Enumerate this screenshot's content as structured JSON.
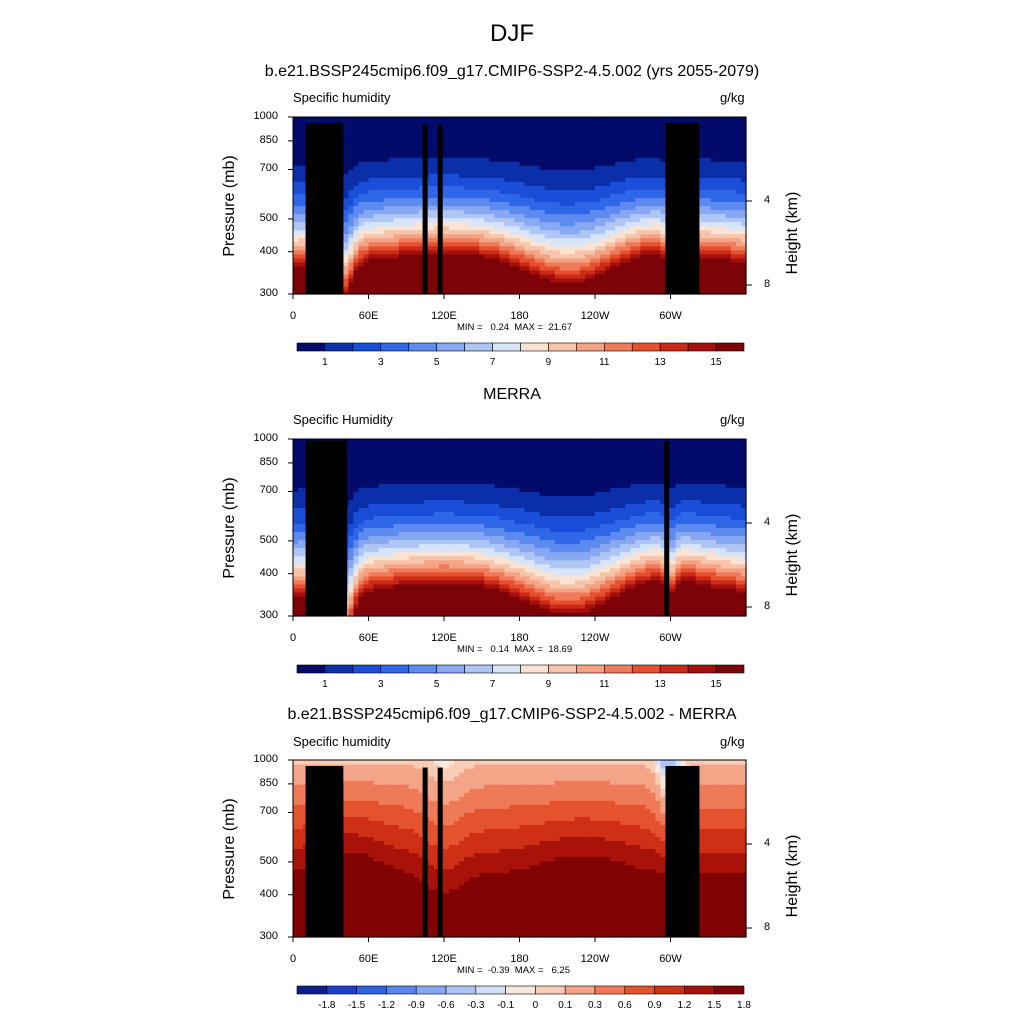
{
  "page": {
    "title": "DJF"
  },
  "palettes": {
    "abs": [
      "#030b6a",
      "#0a2fa8",
      "#1a4ed8",
      "#2f67e8",
      "#5d8bef",
      "#88a9f2",
      "#b0c6f5",
      "#d8e4f8",
      "#fbe3d4",
      "#f7c4aa",
      "#f4a384",
      "#ef7b5a",
      "#e6502f",
      "#cb2a16",
      "#a50f0d",
      "#7c0308"
    ],
    "diff": [
      "#0b1f8f",
      "#1c3fd0",
      "#2f63e6",
      "#5a86ee",
      "#86a8f2",
      "#adc3f5",
      "#d3e0f9",
      "#f9e8dc",
      "#f8cdb6",
      "#f4a487",
      "#ef7a58",
      "#e5522f",
      "#cf2f15",
      "#a81208",
      "#820303"
    ]
  },
  "panels": [
    {
      "title": "b.e21.BSSP245cmip6.f09_g17.CMIP6-SSP2-4.5.002 (yrs 2055-2079)",
      "left_label": "Specific humidity",
      "units": "g/kg",
      "stats": "MIN =   0.24  MAX =  21.67",
      "colorbar": "abs"
    },
    {
      "title": "MERRA",
      "left_label": "Specific Humidity",
      "units": "g/kg",
      "stats": "MIN =   0.14  MAX =  18.69",
      "colorbar": "abs"
    },
    {
      "title": "b.e21.BSSP245cmip6.f09_g17.CMIP6-SSP2-4.5.002 - MERRA",
      "left_label": "Specific humidity",
      "units": "g/kg",
      "stats": "MIN =  -0.39  MAX =   6.25",
      "colorbar": "diff"
    }
  ],
  "chart_data": {
    "type": "heatmap",
    "xlabel": "",
    "ylabel": "Pressure (mb)",
    "ylabel_right": "Height (km)",
    "x_ticks": [
      "0",
      "60E",
      "120E",
      "180",
      "120W",
      "60W"
    ],
    "x_tick_values": [
      0,
      60,
      120,
      180,
      240,
      300
    ],
    "xlim": [
      0,
      360
    ],
    "y_ticks": [
      "300",
      "400",
      "500",
      "700",
      "850",
      "1000"
    ],
    "y_tick_values": [
      300,
      400,
      500,
      700,
      850,
      1000
    ],
    "ylim": [
      1000,
      300
    ],
    "y_log": true,
    "right_ticks": [
      "8",
      "4"
    ],
    "right_tick_values": [
      8,
      4
    ],
    "colorbar_abs_labels": [
      "1",
      "3",
      "5",
      "7",
      "9",
      "11",
      "13",
      "15"
    ],
    "colorbar_diff_labels": [
      "-1.8",
      "-1.5",
      "-1.2",
      "-0.9",
      "-0.6",
      "-0.3",
      "-0.1",
      "0",
      "0.1",
      "0.3",
      "0.6",
      "0.9",
      "1.2",
      "1.5",
      "1.8"
    ],
    "fields": [
      {
        "name": "model",
        "min": 0.24,
        "max": 21.67
      },
      {
        "name": "merra",
        "min": 0.14,
        "max": 18.69
      },
      {
        "name": "difference",
        "min": -0.39,
        "max": 6.25
      }
    ]
  }
}
